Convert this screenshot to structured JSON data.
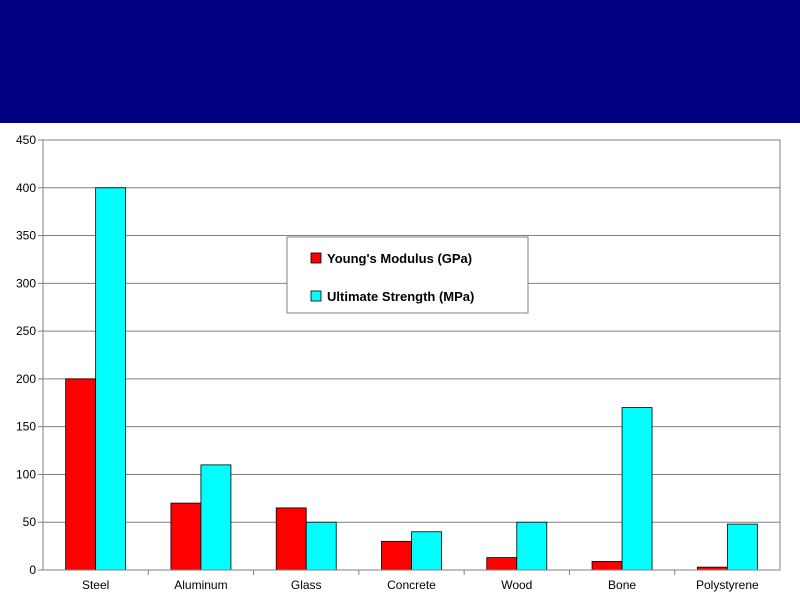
{
  "slide": {
    "title_band_color": "#000080"
  },
  "chart_data": {
    "type": "bar",
    "categories": [
      "Steel",
      "Aluminum",
      "Glass",
      "Concrete",
      "Wood",
      "Bone",
      "Polystyrene"
    ],
    "series": [
      {
        "name": "Young's Modulus (GPa)",
        "color": "#ff0000",
        "values": [
          200,
          70,
          65,
          30,
          13,
          9,
          3
        ]
      },
      {
        "name": "Ultimate Strength (MPa)",
        "color": "#00ffff",
        "values": [
          400,
          110,
          50,
          40,
          50,
          170,
          48
        ]
      }
    ],
    "ylim": [
      0,
      450
    ],
    "yticks": [
      "0",
      "50",
      "100",
      "150",
      "200",
      "250",
      "300",
      "350",
      "400",
      "450"
    ],
    "grid": true,
    "legend_position": "center-top"
  }
}
